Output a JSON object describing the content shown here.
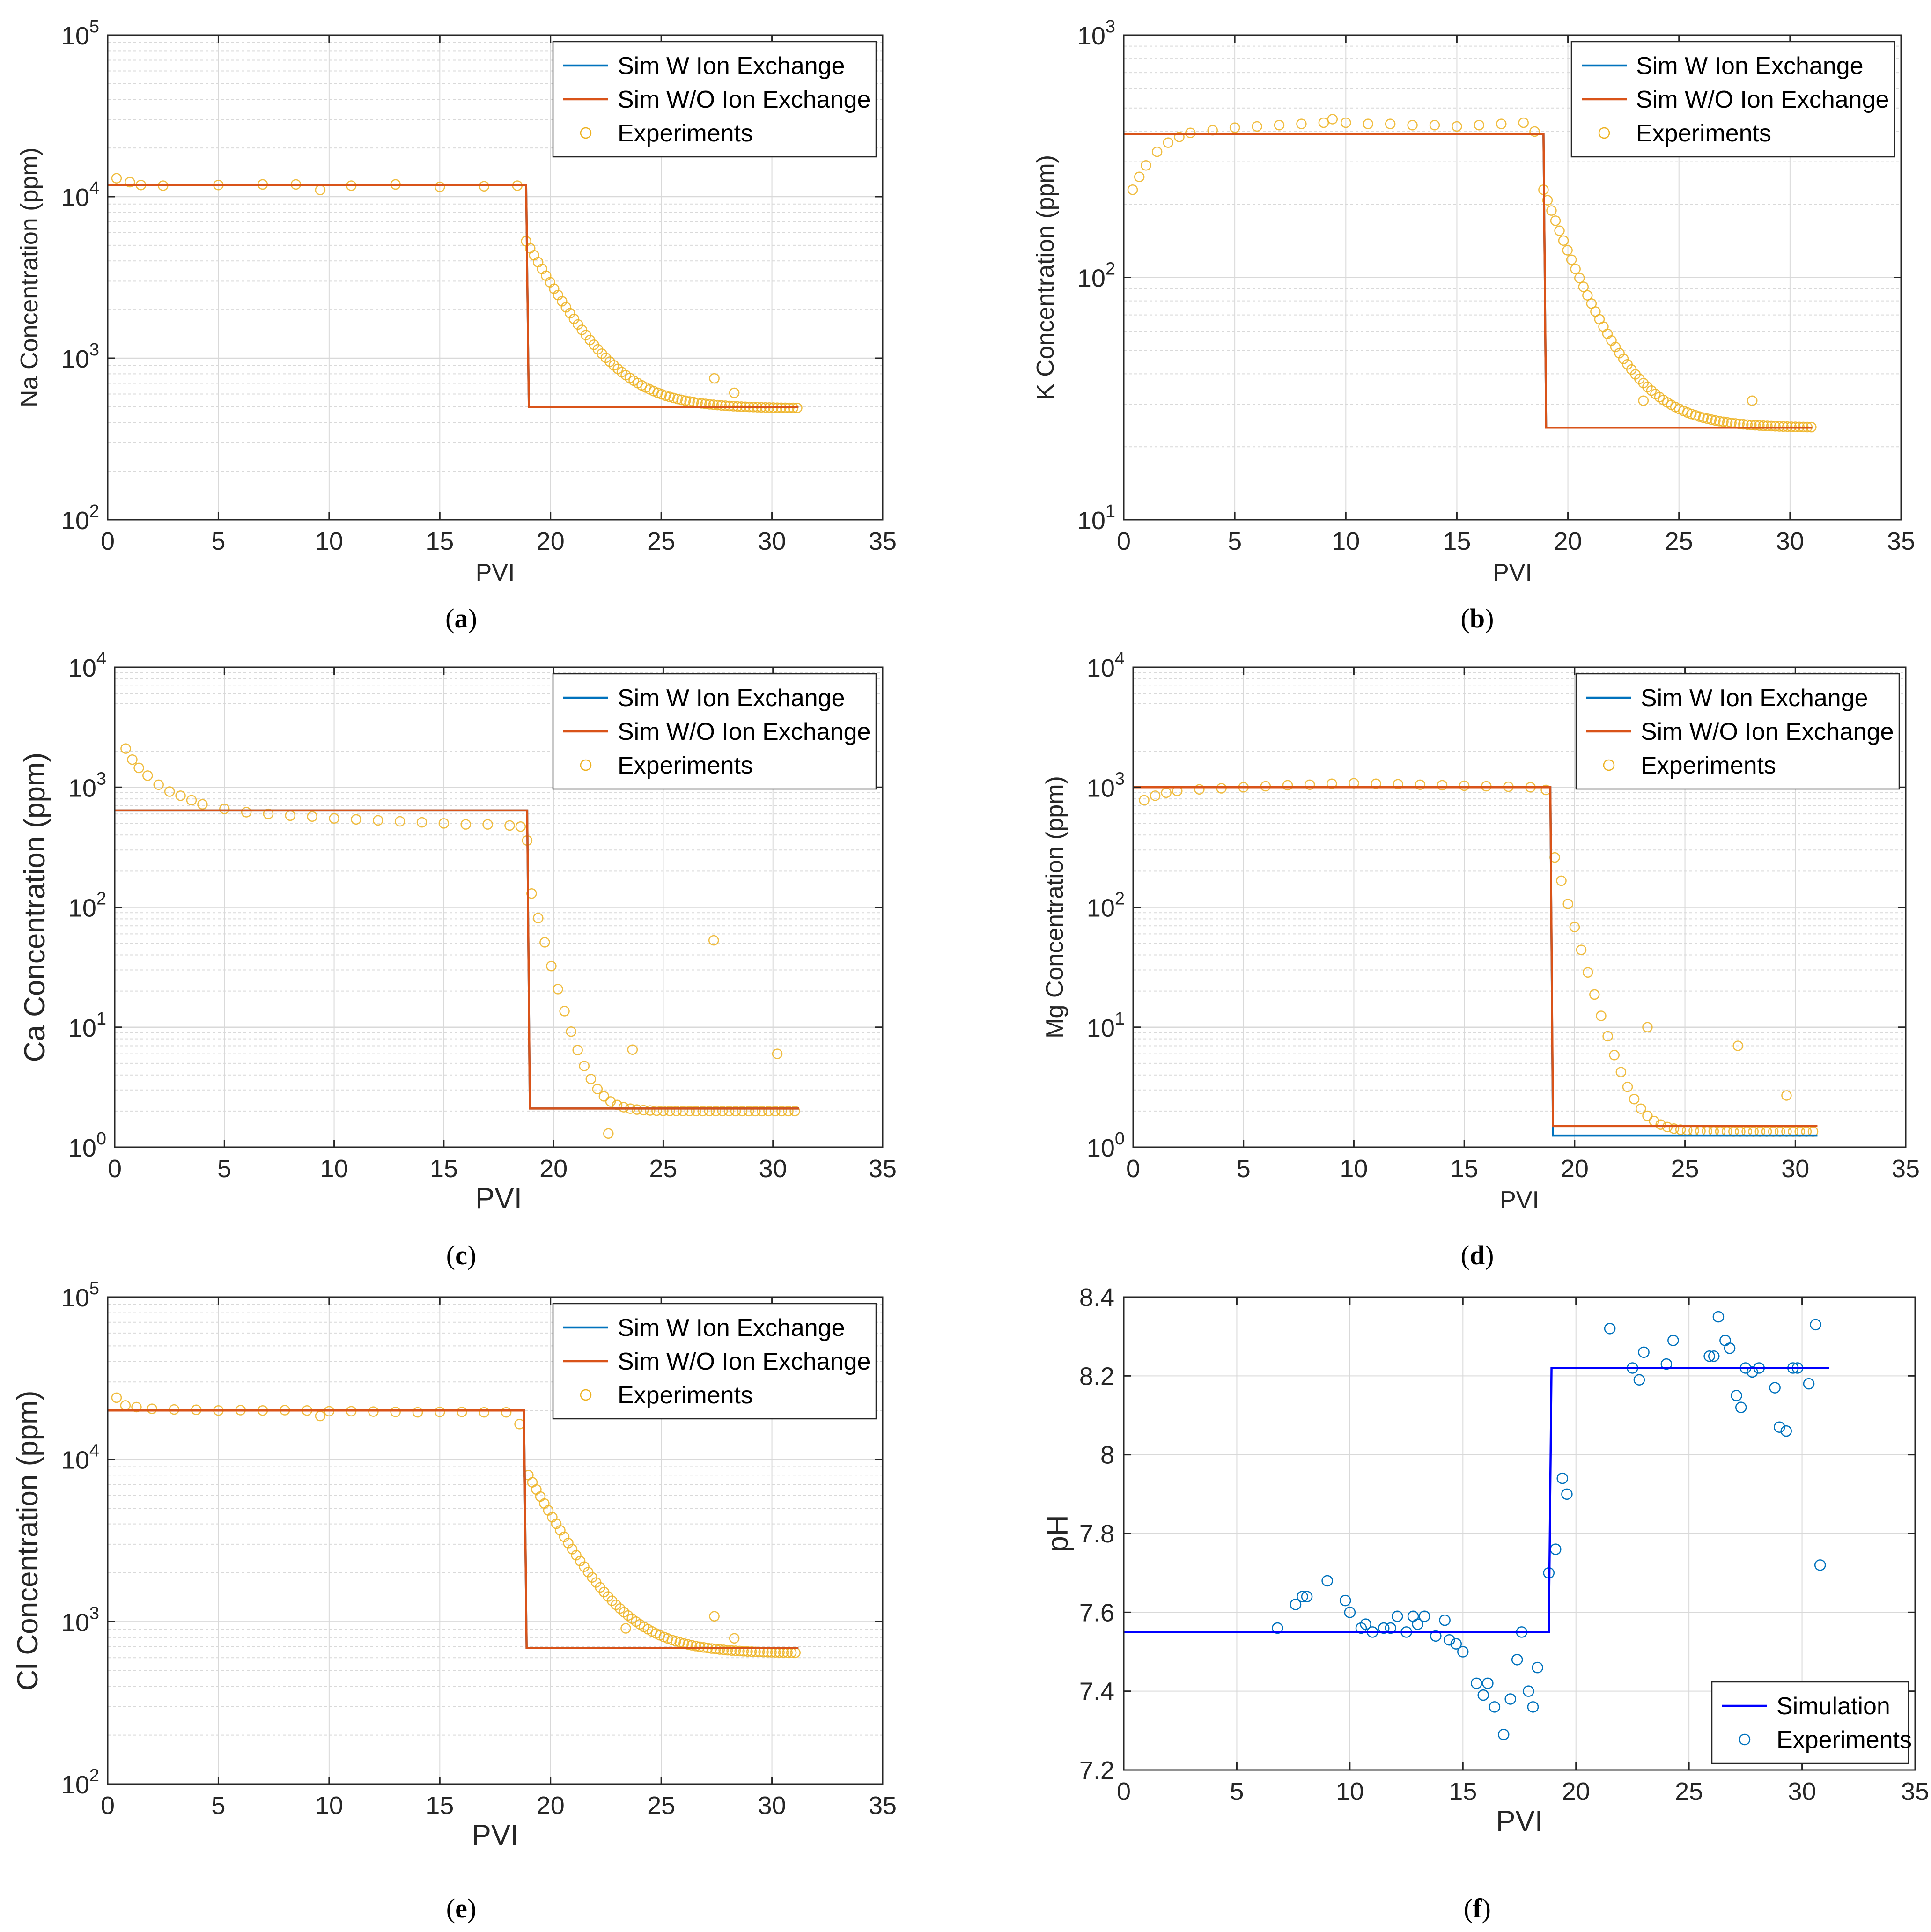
{
  "figure": {
    "panel_labels": [
      "a",
      "b",
      "c",
      "d",
      "e",
      "f"
    ]
  },
  "colors": {
    "sim_w": "#0072BD",
    "sim_wo": "#D95319",
    "experiments_orange": "#EDB120",
    "sim_blue": "#0000FF",
    "experiments_blue": "#0072BD",
    "grid": "#d9d9d9",
    "axis": "#262626"
  },
  "chart_data": [
    {
      "id": "a",
      "type": "scatter",
      "yscale": "log",
      "title": "",
      "xlabel": "PVI",
      "ylabel": "Na Concentration (ppm)",
      "xlim": [
        0,
        35
      ],
      "ylim": [
        100,
        100000
      ],
      "xticks": [
        0,
        5,
        10,
        15,
        20,
        25,
        30,
        35
      ],
      "yticks": [
        {
          "base": "10",
          "exp": "2"
        },
        {
          "base": "10",
          "exp": "3"
        },
        {
          "base": "10",
          "exp": "4"
        },
        {
          "base": "10",
          "exp": "5"
        }
      ],
      "legend": [
        "Sim W Ion Exchange",
        "Sim W/O Ion Exchange",
        "Experiments"
      ],
      "legend_position": "top-right",
      "sim_w": {
        "plateau": 11800,
        "step_x": 18.9,
        "final": 500,
        "x_end": 31.2
      },
      "sim_wo": {
        "plateau": 11800,
        "step_x": 18.9,
        "final": 500,
        "x_end": 31.2
      },
      "experiments": {
        "points": [
          [
            0.4,
            13000
          ],
          [
            1.0,
            12300
          ],
          [
            1.5,
            11800
          ],
          [
            2.5,
            11700
          ],
          [
            5,
            11800
          ],
          [
            7,
            11900
          ],
          [
            8.5,
            11900
          ],
          [
            9.6,
            11000
          ],
          [
            11,
            11700
          ],
          [
            13,
            11900
          ],
          [
            15,
            11500
          ],
          [
            17,
            11600
          ],
          [
            18.5,
            11700
          ]
        ],
        "decay": {
          "x0": 18.9,
          "x1": 31.2,
          "y0": 5300,
          "floor": 490,
          "k": 0.62,
          "step": 0.18
        },
        "outliers": [
          [
            27.4,
            750
          ],
          [
            28.3,
            610
          ]
        ]
      }
    },
    {
      "id": "b",
      "type": "scatter",
      "yscale": "log",
      "title": "",
      "xlabel": "PVI",
      "ylabel": "K Concentration (ppm)",
      "xlim": [
        0,
        35
      ],
      "ylim": [
        10,
        1000
      ],
      "xticks": [
        0,
        5,
        10,
        15,
        20,
        25,
        30,
        35
      ],
      "yticks": [
        {
          "base": "10",
          "exp": "1"
        },
        {
          "base": "10",
          "exp": "2"
        },
        {
          "base": "10",
          "exp": "3"
        }
      ],
      "legend": [
        "Sim W Ion Exchange",
        "Sim W/O Ion Exchange",
        "Experiments"
      ],
      "legend_position": "top-right",
      "sim_w": {
        "plateau": 390,
        "step_x": 18.9,
        "final": 24,
        "x_end": 31.0
      },
      "sim_wo": {
        "plateau": 390,
        "step_x": 18.9,
        "final": 24,
        "x_end": 31.0
      },
      "experiments": {
        "points": [
          [
            0.4,
            230
          ],
          [
            0.7,
            260
          ],
          [
            1.0,
            290
          ],
          [
            1.5,
            330
          ],
          [
            2.0,
            360
          ],
          [
            2.5,
            380
          ],
          [
            3,
            395
          ],
          [
            4,
            405
          ],
          [
            5,
            415
          ],
          [
            6,
            420
          ],
          [
            7,
            425
          ],
          [
            8,
            430
          ],
          [
            9,
            435
          ],
          [
            9.4,
            450
          ],
          [
            10,
            435
          ],
          [
            11,
            430
          ],
          [
            12,
            430
          ],
          [
            13,
            425
          ],
          [
            14,
            425
          ],
          [
            15,
            420
          ],
          [
            16,
            425
          ],
          [
            17,
            430
          ],
          [
            18,
            435
          ],
          [
            18.5,
            400
          ]
        ],
        "decay": {
          "x0": 18.9,
          "x1": 31.0,
          "y0": 230,
          "floor": 24,
          "k": 0.62,
          "step": 0.18
        },
        "outliers": [
          [
            23.4,
            31
          ],
          [
            28.3,
            31
          ]
        ]
      }
    },
    {
      "id": "c",
      "type": "scatter",
      "yscale": "log",
      "title": "",
      "xlabel": "PVI",
      "ylabel": "Ca Concentration (ppm)",
      "xlim": [
        0,
        35
      ],
      "ylim": [
        1,
        10000
      ],
      "xticks": [
        0,
        5,
        10,
        15,
        20,
        25,
        30,
        35
      ],
      "yticks": [
        {
          "base": "10",
          "exp": "0"
        },
        {
          "base": "10",
          "exp": "1"
        },
        {
          "base": "10",
          "exp": "2"
        },
        {
          "base": "10",
          "exp": "3"
        },
        {
          "base": "10",
          "exp": "4"
        }
      ],
      "legend": [
        "Sim W Ion Exchange",
        "Sim W/O Ion Exchange",
        "Experiments"
      ],
      "legend_position": "top-right",
      "sim_w": {
        "plateau": 640,
        "step_x": 18.8,
        "final": 2.1,
        "x_end": 31.2
      },
      "sim_wo": {
        "plateau": 640,
        "step_x": 18.8,
        "final": 2.1,
        "x_end": 31.2
      },
      "experiments": {
        "points": [
          [
            0.5,
            2100
          ],
          [
            0.8,
            1700
          ],
          [
            1.1,
            1450
          ],
          [
            1.5,
            1250
          ],
          [
            2.0,
            1050
          ],
          [
            2.5,
            920
          ],
          [
            3,
            850
          ],
          [
            3.5,
            780
          ],
          [
            4,
            720
          ],
          [
            5,
            660
          ],
          [
            6,
            620
          ],
          [
            7,
            600
          ],
          [
            8,
            580
          ],
          [
            9,
            570
          ],
          [
            10,
            550
          ],
          [
            11,
            540
          ],
          [
            12,
            530
          ],
          [
            13,
            520
          ],
          [
            14,
            510
          ],
          [
            15,
            500
          ],
          [
            16,
            490
          ],
          [
            17,
            490
          ],
          [
            18,
            480
          ],
          [
            18.5,
            470
          ],
          [
            18.8,
            360
          ]
        ],
        "decay": {
          "x0": 19.0,
          "x1": 31.2,
          "y0": 130,
          "floor": 2.0,
          "k": 1.6,
          "step": 0.3
        },
        "outliers": [
          [
            22.5,
            1.3
          ],
          [
            23.6,
            6.5
          ],
          [
            27.3,
            53
          ],
          [
            30.2,
            6
          ]
        ]
      }
    },
    {
      "id": "d",
      "type": "scatter",
      "yscale": "log",
      "title": "",
      "xlabel": "PVI",
      "ylabel": "Mg Concentration (ppm)",
      "xlim": [
        0,
        35
      ],
      "ylim": [
        1,
        10000
      ],
      "xticks": [
        0,
        5,
        10,
        15,
        20,
        25,
        30,
        35
      ],
      "yticks": [
        {
          "base": "10",
          "exp": "0"
        },
        {
          "base": "10",
          "exp": "1"
        },
        {
          "base": "10",
          "exp": "2"
        },
        {
          "base": "10",
          "exp": "3"
        },
        {
          "base": "10",
          "exp": "4"
        }
      ],
      "legend": [
        "Sim W Ion Exchange",
        "Sim W/O Ion Exchange",
        "Experiments"
      ],
      "legend_position": "top-right",
      "sim_w": {
        "plateau": 1000,
        "step_x": 18.9,
        "final": 1.25,
        "x_end": 31.0
      },
      "sim_wo": {
        "plateau": 1000,
        "step_x": 18.9,
        "final": 1.5,
        "x_end": 31.0
      },
      "experiments": {
        "points": [
          [
            0.5,
            780
          ],
          [
            1.0,
            850
          ],
          [
            1.5,
            900
          ],
          [
            2,
            930
          ],
          [
            3,
            960
          ],
          [
            4,
            980
          ],
          [
            5,
            1000
          ],
          [
            6,
            1020
          ],
          [
            7,
            1040
          ],
          [
            8,
            1050
          ],
          [
            9,
            1070
          ],
          [
            10,
            1080
          ],
          [
            11,
            1070
          ],
          [
            12,
            1060
          ],
          [
            13,
            1050
          ],
          [
            14,
            1040
          ],
          [
            15,
            1030
          ],
          [
            16,
            1020
          ],
          [
            17,
            1010
          ],
          [
            18,
            1000
          ],
          [
            18.7,
            950
          ]
        ],
        "decay": {
          "x0": 19.1,
          "x1": 31.0,
          "y0": 260,
          "floor": 1.35,
          "k": 1.5,
          "step": 0.3
        },
        "outliers": [
          [
            23.3,
            10
          ],
          [
            27.4,
            7
          ],
          [
            29.6,
            2.7
          ]
        ]
      }
    },
    {
      "id": "e",
      "type": "scatter",
      "yscale": "log",
      "title": "",
      "xlabel": "PVI",
      "ylabel": "Cl Concentration (ppm)",
      "xlim": [
        0,
        35
      ],
      "ylim": [
        100,
        100000
      ],
      "xticks": [
        0,
        5,
        10,
        15,
        20,
        25,
        30,
        35
      ],
      "yticks": [
        {
          "base": "10",
          "exp": "2"
        },
        {
          "base": "10",
          "exp": "3"
        },
        {
          "base": "10",
          "exp": "4"
        },
        {
          "base": "10",
          "exp": "5"
        }
      ],
      "legend": [
        "Sim W Ion Exchange",
        "Sim W/O Ion Exchange",
        "Experiments"
      ],
      "legend_position": "top-right",
      "sim_w": {
        "plateau": 20000,
        "step_x": 18.8,
        "final": 690,
        "x_end": 31.2
      },
      "sim_wo": {
        "plateau": 20000,
        "step_x": 18.8,
        "final": 690,
        "x_end": 31.2
      },
      "experiments": {
        "points": [
          [
            0.4,
            24000
          ],
          [
            0.8,
            21500
          ],
          [
            1.3,
            21000
          ],
          [
            2,
            20500
          ],
          [
            3,
            20300
          ],
          [
            4,
            20200
          ],
          [
            5,
            20000
          ],
          [
            6,
            20100
          ],
          [
            7,
            20000
          ],
          [
            8,
            20100
          ],
          [
            9,
            20000
          ],
          [
            9.6,
            18500
          ],
          [
            10,
            19800
          ],
          [
            11,
            19800
          ],
          [
            12,
            19700
          ],
          [
            13,
            19600
          ],
          [
            14,
            19500
          ],
          [
            15,
            19600
          ],
          [
            16,
            19600
          ],
          [
            17,
            19500
          ],
          [
            18,
            19500
          ],
          [
            18.6,
            16500
          ]
        ],
        "decay": {
          "x0": 19.0,
          "x1": 31.2,
          "y0": 8000,
          "floor": 640,
          "k": 0.62,
          "step": 0.18
        },
        "outliers": [
          [
            23.4,
            910
          ],
          [
            27.4,
            1080
          ],
          [
            28.3,
            790
          ]
        ]
      }
    },
    {
      "id": "f",
      "type": "scatter",
      "yscale": "linear",
      "title": "",
      "xlabel": "PVI",
      "ylabel": "pH",
      "xlim": [
        0,
        35
      ],
      "ylim": [
        7.2,
        8.4
      ],
      "xticks": [
        0,
        5,
        10,
        15,
        20,
        25,
        30,
        35
      ],
      "yticks": [
        "7.2",
        "7.4",
        "7.6",
        "7.8",
        "8",
        "8.2",
        "8.4"
      ],
      "legend": [
        "Simulation",
        "Experiments"
      ],
      "legend_position": "bottom-right",
      "simulation": {
        "x_start": 0,
        "low": 7.55,
        "step_x": 18.8,
        "high": 8.22,
        "x_end": 31.2
      },
      "experiments": {
        "points": [
          [
            6.8,
            7.56
          ],
          [
            7.6,
            7.62
          ],
          [
            7.9,
            7.64
          ],
          [
            8.1,
            7.64
          ],
          [
            9.0,
            7.68
          ],
          [
            9.8,
            7.63
          ],
          [
            10.0,
            7.6
          ],
          [
            10.5,
            7.56
          ],
          [
            10.7,
            7.57
          ],
          [
            11.0,
            7.55
          ],
          [
            11.5,
            7.56
          ],
          [
            11.8,
            7.56
          ],
          [
            12.1,
            7.59
          ],
          [
            12.5,
            7.55
          ],
          [
            12.8,
            7.59
          ],
          [
            13.0,
            7.57
          ],
          [
            13.3,
            7.59
          ],
          [
            13.8,
            7.54
          ],
          [
            14.2,
            7.58
          ],
          [
            14.4,
            7.53
          ],
          [
            14.7,
            7.52
          ],
          [
            15.0,
            7.5
          ],
          [
            15.6,
            7.42
          ],
          [
            15.9,
            7.39
          ],
          [
            16.1,
            7.42
          ],
          [
            16.4,
            7.36
          ],
          [
            16.8,
            7.29
          ],
          [
            17.1,
            7.38
          ],
          [
            17.4,
            7.48
          ],
          [
            17.6,
            7.55
          ],
          [
            17.9,
            7.4
          ],
          [
            18.1,
            7.36
          ],
          [
            18.3,
            7.46
          ],
          [
            18.8,
            7.7
          ],
          [
            19.1,
            7.76
          ],
          [
            19.4,
            7.94
          ],
          [
            19.6,
            7.9
          ],
          [
            21.5,
            8.32
          ],
          [
            22.5,
            8.22
          ],
          [
            22.8,
            8.19
          ],
          [
            23.0,
            8.26
          ],
          [
            24.0,
            8.23
          ],
          [
            24.3,
            8.29
          ],
          [
            25.9,
            8.25
          ],
          [
            26.1,
            8.25
          ],
          [
            26.3,
            8.35
          ],
          [
            26.6,
            8.29
          ],
          [
            26.8,
            8.27
          ],
          [
            27.1,
            8.15
          ],
          [
            27.3,
            8.12
          ],
          [
            27.5,
            8.22
          ],
          [
            27.8,
            8.21
          ],
          [
            28.1,
            8.22
          ],
          [
            28.8,
            8.17
          ],
          [
            29.0,
            8.07
          ],
          [
            29.3,
            8.06
          ],
          [
            29.6,
            8.22
          ],
          [
            29.8,
            8.22
          ],
          [
            30.3,
            8.18
          ],
          [
            30.6,
            8.33
          ],
          [
            30.8,
            7.72
          ]
        ]
      }
    }
  ]
}
